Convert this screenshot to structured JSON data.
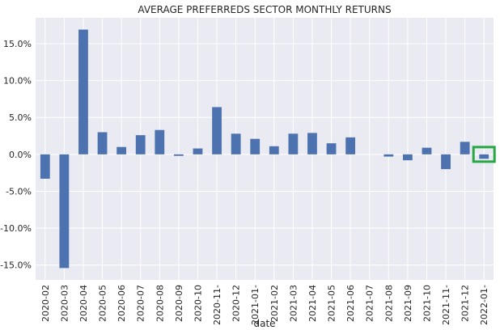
{
  "chart_data": {
    "type": "bar",
    "title": "AVERAGE PREFERREDS SECTOR MONTHLY RETURNS",
    "xlabel": "date",
    "ylabel": "",
    "categories": [
      "2020-02",
      "2020-03",
      "2020-04",
      "2020-05",
      "2020-06",
      "2020-07",
      "2020-08",
      "2020-09",
      "2020-10",
      "2020-11-",
      "2020-12",
      "2021-01-",
      "2021-02",
      "2021-03",
      "2021-04",
      "2021-05",
      "2021-06",
      "2021-07",
      "2021-08",
      "2021-09",
      "2021-10",
      "2021-11-",
      "2021-12",
      "2022-01-"
    ],
    "values": [
      -3.3,
      -15.4,
      16.9,
      3.0,
      1.0,
      2.6,
      3.3,
      -0.2,
      0.8,
      6.4,
      2.8,
      2.1,
      1.1,
      2.8,
      2.9,
      1.5,
      2.3,
      0.0,
      -0.3,
      -0.8,
      0.9,
      -2.0,
      1.7,
      -0.6
    ],
    "ylim": [
      -17,
      18.5
    ],
    "yticks": [
      15,
      10,
      5,
      0,
      -5,
      -10,
      -15
    ],
    "ytick_labels": [
      "15.0%",
      "10.0%",
      "5.0%",
      "0.0%",
      "-5.0%",
      "-10.0%",
      "-15.0%"
    ],
    "grid": true,
    "colors": {
      "bar": "#4c72b0",
      "plot_bg": "#eaeaf2",
      "grid": "#ffffff",
      "highlight": "#28a745"
    },
    "highlighted_category": "2022-01-"
  }
}
